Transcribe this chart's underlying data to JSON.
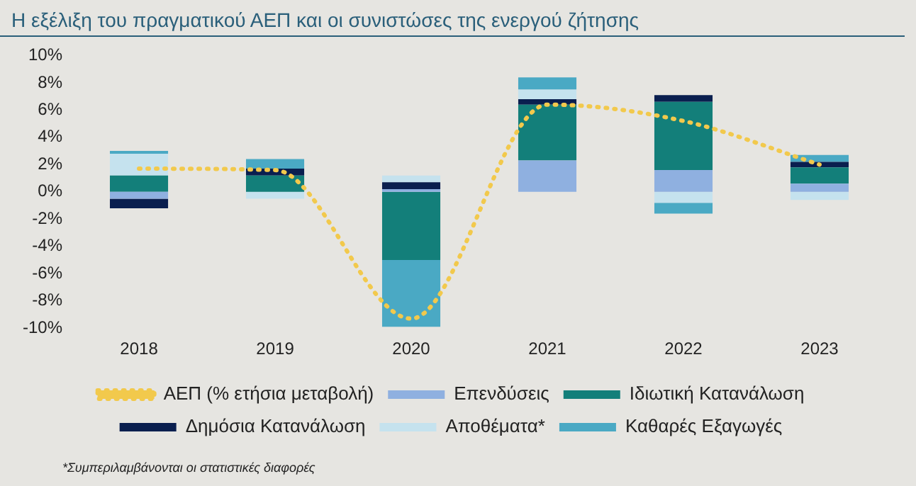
{
  "chart_data": {
    "type": "bar",
    "title": "Η εξέλιξη του πραγματικού ΑΕΠ και οι συνιστώσες της ενεργού ζήτησης",
    "categories": [
      "2018",
      "2019",
      "2020",
      "2021",
      "2022",
      "2023"
    ],
    "stacked": true,
    "legend": "bottom",
    "grid": false,
    "ylim": [
      -10,
      10
    ],
    "yticks": [
      {
        "value": -10,
        "label": "-10%"
      },
      {
        "value": -8,
        "label": "-8%"
      },
      {
        "value": -6,
        "label": "-6%"
      },
      {
        "value": -4,
        "label": "-4%"
      },
      {
        "value": -2,
        "label": "-2%"
      },
      {
        "value": 0,
        "label": "0%"
      },
      {
        "value": 2,
        "label": "2%"
      },
      {
        "value": 4,
        "label": "4%"
      },
      {
        "value": 6,
        "label": "6%"
      },
      {
        "value": 8,
        "label": "8%"
      },
      {
        "value": 10,
        "label": "10%"
      }
    ],
    "series": [
      {
        "name": "Επενδύσεις",
        "color": "#8fb0e0",
        "values": [
          -0.5,
          null,
          0.2,
          2.3,
          1.6,
          0.6
        ]
      },
      {
        "name": "Ιδιωτική Κατανάλωση",
        "color": "#137f7a",
        "values": [
          1.2,
          1.2,
          -5.0,
          4.1,
          5.0,
          1.2
        ]
      },
      {
        "name": "Δημόσια Κατανάλωση",
        "color": "#0a1f4f",
        "values": [
          -0.7,
          0.5,
          0.5,
          0.4,
          0.5,
          0.4
        ]
      },
      {
        "name": "Αποθέματα*",
        "color": "#c5e2ee",
        "values": [
          1.6,
          -0.5,
          0.5,
          0.7,
          -0.8,
          -0.6
        ]
      },
      {
        "name": "Καθαρές Εξαγωγές",
        "color": "#4aa9c4",
        "values": [
          0.2,
          0.7,
          -4.9,
          0.9,
          -0.8,
          0.5
        ]
      },
      {
        "name": "ΑΕΠ (% ετήσια μεταβολή)",
        "type": "line",
        "color": "#f2c94c",
        "line_style": "dotted",
        "marker": "none",
        "values": [
          1.7,
          1.6,
          -9.3,
          6.4,
          5.2,
          2.0
        ]
      }
    ],
    "annotations": [
      "*Συμπεριλαμβάνονται οι στατιστικές διαφορές"
    ]
  }
}
